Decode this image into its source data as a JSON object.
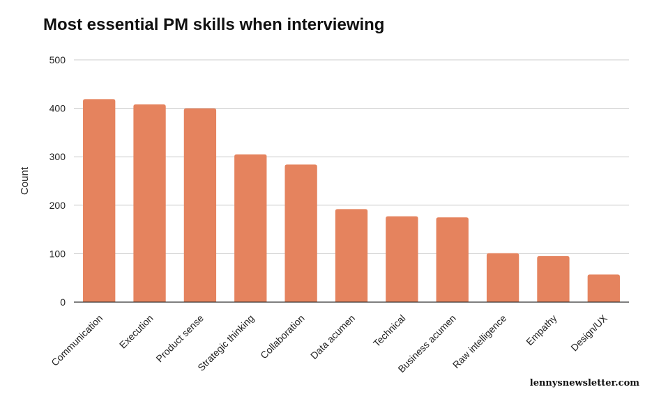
{
  "chart_data": {
    "type": "bar",
    "title": "Most essential PM skills when interviewing",
    "xlabel": "",
    "ylabel": "Count",
    "categories": [
      "Communication",
      "Execution",
      "Product sense",
      "Strategic thinking",
      "Collaboration",
      "Data acumen",
      "Technical",
      "Business acumen",
      "Raw intelligence",
      "Empathy",
      "Design/UX"
    ],
    "values": [
      419,
      408,
      400,
      305,
      284,
      192,
      177,
      175,
      101,
      95,
      57
    ],
    "ylim": [
      0,
      500
    ],
    "yticks": [
      "0",
      "100",
      "200",
      "300",
      "400",
      "500"
    ],
    "grid": true,
    "bar_color": "#E5835E"
  },
  "footer": {
    "brand": "lennysnewsletter.com"
  }
}
